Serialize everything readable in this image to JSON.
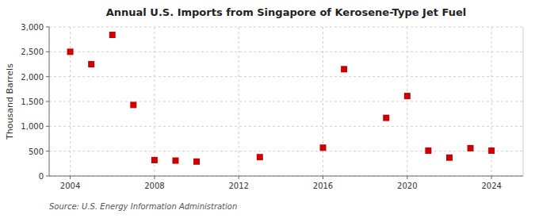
{
  "chart_data": {
    "type": "scatter",
    "title": "Annual U.S. Imports from Singapore of Kerosene-Type Jet Fuel",
    "y_label": "Thousand Barrels",
    "source": "Source: U.S. Energy Information Administration",
    "x": [
      2004,
      2005,
      2006,
      2007,
      2008,
      2009,
      2010,
      2013,
      2016,
      2017,
      2019,
      2020,
      2021,
      2022,
      2023,
      2024
    ],
    "values": [
      2500,
      2250,
      2840,
      1430,
      320,
      310,
      290,
      380,
      570,
      2150,
      1170,
      1610,
      510,
      370,
      560,
      510
    ],
    "xlim": [
      2003.0,
      2025.5
    ],
    "ylim": [
      0,
      3000
    ],
    "xticks": [
      2004,
      2008,
      2012,
      2016,
      2020,
      2024
    ],
    "yticks": [
      0,
      500,
      {
        "value": 1000,
        "label": "1,000"
      },
      {
        "value": 1500,
        "label": "1,500"
      },
      {
        "value": 2000,
        "label": "2,000"
      },
      {
        "value": 2500,
        "label": "2,500"
      },
      {
        "value": 3000,
        "label": "3,000"
      }
    ],
    "color": "#cc0000",
    "marker": "square",
    "grid": true
  }
}
